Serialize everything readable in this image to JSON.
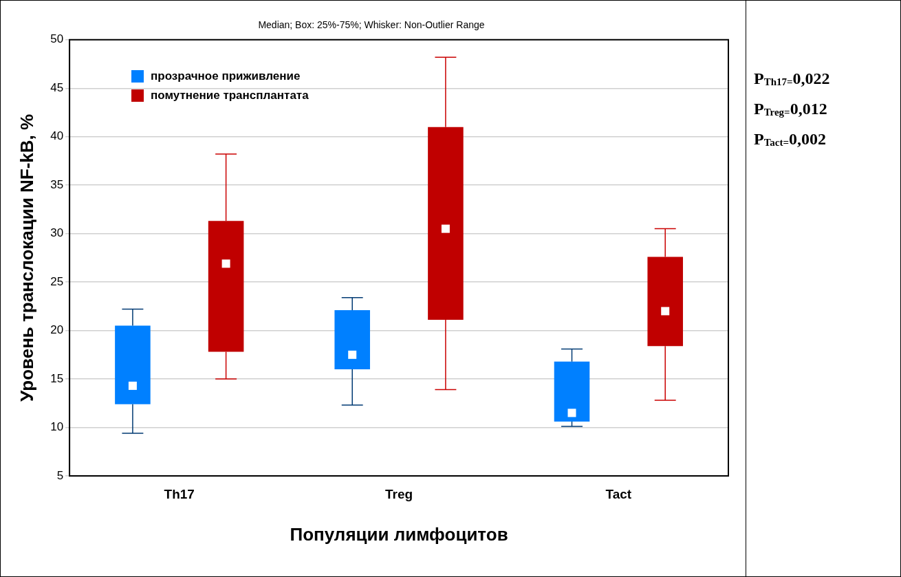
{
  "chart_data": {
    "type": "box",
    "title": "Median; Box: 25%-75%; Whisker: Non-Outlier Range",
    "xlabel": "Популяции лимфоцитов",
    "ylabel": "Уровень транслокации NF-kB, %",
    "categories": [
      "Th17",
      "Treg",
      "Tact"
    ],
    "series": [
      {
        "name": "прозрачное приживление",
        "color": "#0080ff",
        "boxes": [
          {
            "low": 9.4,
            "q1": 12.4,
            "median": 14.3,
            "q3": 20.5,
            "high": 22.2
          },
          {
            "low": 12.3,
            "q1": 16.0,
            "median": 17.5,
            "q3": 22.1,
            "high": 23.4
          },
          {
            "low": 10.1,
            "q1": 10.6,
            "median": 11.5,
            "q3": 16.8,
            "high": 18.1
          }
        ]
      },
      {
        "name": "помутнение трансплантата",
        "color": "#c00000",
        "boxes": [
          {
            "low": 15.0,
            "q1": 17.8,
            "median": 26.9,
            "q3": 31.3,
            "high": 38.2
          },
          {
            "low": 13.9,
            "q1": 21.1,
            "median": 30.5,
            "q3": 41.0,
            "high": 48.2
          },
          {
            "low": 12.8,
            "q1": 18.4,
            "median": 22.0,
            "q3": 27.6,
            "high": 30.5
          }
        ]
      }
    ],
    "ylim": [
      5,
      50
    ],
    "yticks": [
      5,
      10,
      15,
      20,
      25,
      30,
      35,
      40,
      45,
      50
    ],
    "grid": "y",
    "legend": "top left",
    "marker": "square",
    "annotations": [
      "P$_{Th17=}$0,022",
      "P$_{Treg=}$0,012",
      "P$_{Tact=}$0,002"
    ]
  }
}
